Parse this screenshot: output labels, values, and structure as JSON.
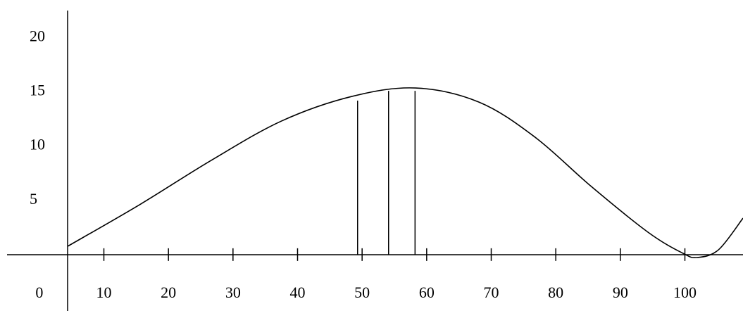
{
  "chart_data": {
    "type": "line",
    "x": [
      4.4,
      15.7,
      26.6,
      37.5,
      48.4,
      58.3,
      68.1,
      76.8,
      85.5,
      94.3,
      99.7,
      101.9,
      105.2,
      109
    ],
    "values": [
      0.77,
      4.66,
      8.68,
      12.31,
      14.58,
      15.36,
      14.06,
      10.82,
      6.28,
      2.06,
      0.12,
      -0.27,
      0.44,
      3.36
    ],
    "color": "#000000",
    "vertical_lines": {
      "x": [
        49.3,
        54.1,
        58.2
      ],
      "values": [
        14.2,
        15.1,
        15.1
      ]
    },
    "xlim": [
      -5,
      109
    ],
    "ylim": [
      -5.2,
      22.5
    ],
    "xticks": [
      0,
      10,
      20,
      30,
      40,
      50,
      60,
      70,
      80,
      90,
      100
    ],
    "yticks": [
      5,
      10,
      15,
      20
    ]
  }
}
